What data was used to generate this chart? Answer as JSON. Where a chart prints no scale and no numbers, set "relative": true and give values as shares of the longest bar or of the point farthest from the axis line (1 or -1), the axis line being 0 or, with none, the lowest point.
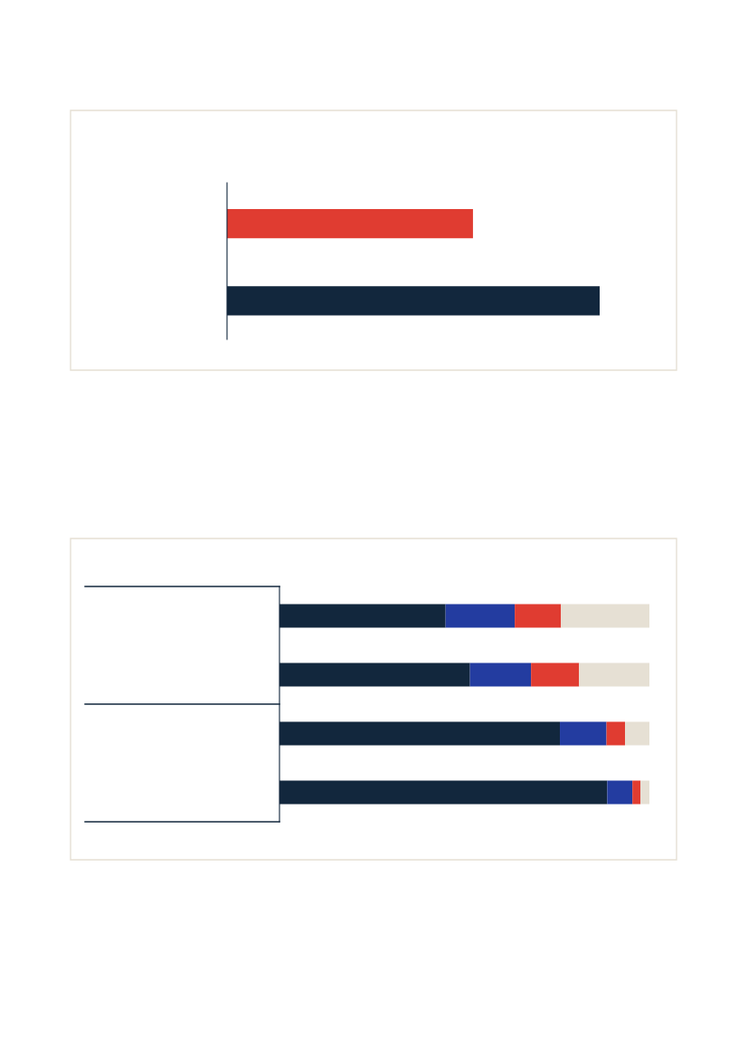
{
  "chart_data": [
    {
      "type": "bar",
      "orientation": "horizontal",
      "relative": true,
      "categories": [
        null,
        null
      ],
      "values": [
        0.66,
        1
      ],
      "colors": [
        "#e03c31",
        "#12273d"
      ]
    },
    {
      "type": "bar",
      "orientation": "horizontal",
      "relative": true,
      "stacked": true,
      "categories": [
        null,
        null,
        null,
        null
      ],
      "series": [
        {
          "color": "#12273d",
          "values": [
            0.449,
            0.515,
            0.758,
            0.886
          ]
        },
        {
          "color": "#233ca0",
          "values": [
            0.187,
            0.165,
            0.126,
            0.068
          ]
        },
        {
          "color": "#e03c31",
          "values": [
            0.125,
            0.13,
            0.05,
            0.022
          ]
        },
        {
          "color": "#e6e0d4",
          "values": [
            0.239,
            0.19,
            0.066,
            0.024
          ]
        }
      ]
    }
  ]
}
